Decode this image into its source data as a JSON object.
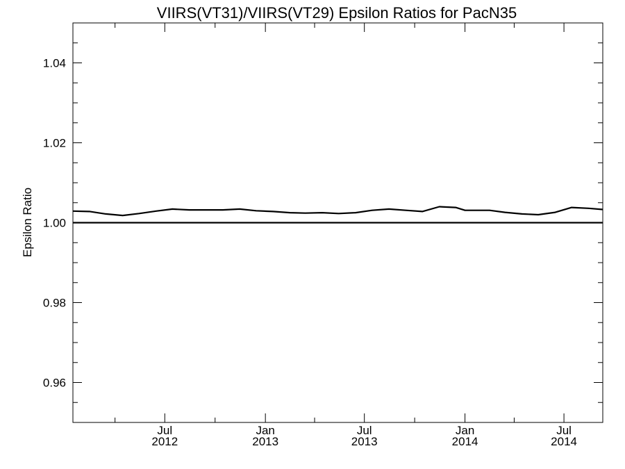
{
  "chart_data": {
    "type": "line",
    "title": "VIIRS(VT31)/VIIRS(VT29)  Epsilon Ratios for PacN35",
    "xlabel": "",
    "ylabel": "Epsilon Ratio",
    "ylim": [
      0.95,
      1.05
    ],
    "y_ticks": [
      {
        "value": 0.96,
        "label": "0.96"
      },
      {
        "value": 0.98,
        "label": "0.98"
      },
      {
        "value": 1.0,
        "label": "1.00"
      },
      {
        "value": 1.02,
        "label": "1.02"
      },
      {
        "value": 1.04,
        "label": "1.04"
      }
    ],
    "y_minor_step": 0.005,
    "xlim": [
      "2012-01-15",
      "2014-09-10"
    ],
    "x_ticks": [
      {
        "date": "2012-07-01",
        "month": "Jul",
        "year": "2012"
      },
      {
        "date": "2013-01-01",
        "month": "Jan",
        "year": "2013"
      },
      {
        "date": "2013-07-01",
        "month": "Jul",
        "year": "2013"
      },
      {
        "date": "2014-01-01",
        "month": "Jan",
        "year": "2014"
      },
      {
        "date": "2014-07-01",
        "month": "Jul",
        "year": "2014"
      }
    ],
    "x_minor_ticks": [
      "2012-04-01",
      "2012-10-01",
      "2013-04-01",
      "2013-10-01",
      "2014-04-01"
    ],
    "grid": false,
    "reference_line": 1.0,
    "series": [
      {
        "x": [
          "2012-01-15",
          "2012-02-15",
          "2012-03-15",
          "2012-04-15",
          "2012-05-15",
          "2012-06-15",
          "2012-07-15",
          "2012-08-15",
          "2012-09-15",
          "2012-10-15",
          "2012-11-15",
          "2012-12-15",
          "2013-01-15",
          "2013-02-15",
          "2013-03-15",
          "2013-04-15",
          "2013-05-15",
          "2013-06-15",
          "2013-07-15",
          "2013-08-15",
          "2013-09-15",
          "2013-10-15",
          "2013-11-15",
          "2013-12-15",
          "2014-01-01",
          "2014-02-15",
          "2014-03-15",
          "2014-04-15",
          "2014-05-15",
          "2014-06-15",
          "2014-07-15",
          "2014-08-15",
          "2014-09-10"
        ],
        "y": [
          1.0029,
          1.0028,
          1.0022,
          1.0018,
          1.0023,
          1.0029,
          1.0034,
          1.0032,
          1.0032,
          1.0032,
          1.0034,
          1.003,
          1.0028,
          1.0025,
          1.0024,
          1.0025,
          1.0023,
          1.0025,
          1.0031,
          1.0034,
          1.0031,
          1.0028,
          1.004,
          1.0038,
          1.0031,
          1.0031,
          1.0026,
          1.0022,
          1.002,
          1.0026,
          1.0038,
          1.0036,
          1.0033
        ]
      }
    ]
  }
}
